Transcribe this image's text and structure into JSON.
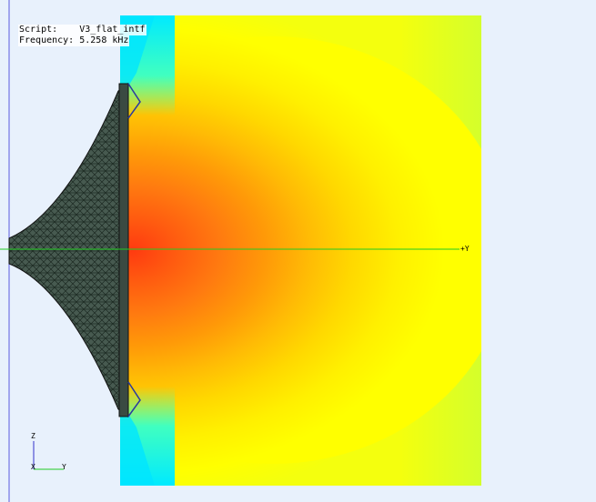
{
  "overlay": {
    "script_label": "Script:",
    "script_name": "V3_flat_intf",
    "frequency_label": "Frequency:",
    "frequency_value": "5.258 kHz"
  },
  "axes": {
    "y_axis_label": "+Y",
    "triad": {
      "z": "Z",
      "x": "X",
      "y": "Y"
    }
  },
  "colors": {
    "background": "#e8f1fc",
    "field_low": "#00e8ff",
    "field_mid": "#ffff00",
    "field_high": "#ff4010",
    "mesh": "#2f4038",
    "axis_line": "#22cc22",
    "symmetry_line": "#5a5ae0"
  },
  "icons": [
    "coordinate-triad-icon"
  ]
}
